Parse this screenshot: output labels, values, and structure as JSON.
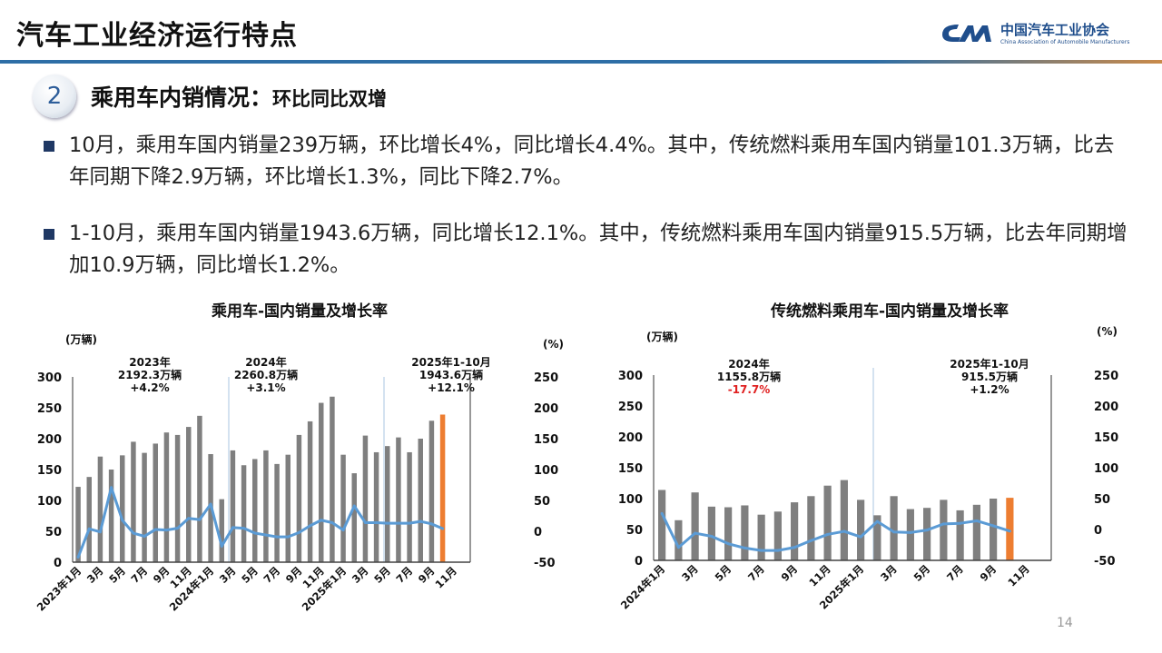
{
  "header": {
    "title": "汽车工业经济运行特点",
    "logo_cn": "中国汽车工业协会",
    "logo_en": "China Association of Automobile Manufacturers",
    "logo_mark": "CAAM"
  },
  "section": {
    "number": "2",
    "title": "乘用车内销情况：",
    "subtitle": "环比同比双增"
  },
  "bullets": [
    "10月，乘用车国内销量239万辆，环比增长4%，同比增长4.4%。其中，传统燃料乘用车国内销量101.3万辆，比去年同期下降2.9万辆，环比增长1.3%，同比下降2.7%。",
    "1-10月，乘用车国内销量1943.6万辆，同比增长12.1%。其中，传统燃料乘用车国内销量915.5万辆，比去年同期增加10.9万辆，同比增长1.2%。"
  ],
  "page_number": "14",
  "colors": {
    "bar": "#7f7f7f",
    "highlight": "#ed7d31",
    "line": "#5b9bd5",
    "negative": "#e02020",
    "accent": "#1f3864"
  },
  "chart_data": [
    {
      "type": "bar+line",
      "title": "乘用车-国内销量及增长率",
      "ylabel": "(万辆)",
      "y2label": "(%)",
      "ylim": [
        0,
        300
      ],
      "yticks": [
        "0",
        "50",
        "100",
        "150",
        "200",
        "250",
        "300"
      ],
      "y2lim": [
        -50,
        250
      ],
      "y2ticks": [
        "-50",
        "0",
        "50",
        "100",
        "150",
        "200",
        "250"
      ],
      "num_categories": 36,
      "x_tick_labels": [
        "2023年1月",
        "3月",
        "5月",
        "7月",
        "9月",
        "11月",
        "2024年1月",
        "3月",
        "5月",
        "7月",
        "9月",
        "11月",
        "2025年1月",
        "3月",
        "5月",
        "7月",
        "9月",
        "11月"
      ],
      "sales": [
        122,
        138,
        171,
        150,
        173,
        195,
        177,
        192,
        210,
        206,
        219,
        237,
        175,
        102,
        181,
        157,
        167,
        181,
        159,
        174,
        206,
        228,
        258,
        268,
        174,
        144,
        205,
        178,
        188,
        202,
        178,
        200,
        229,
        239
      ],
      "growth": [
        -42,
        4,
        -1,
        71,
        18,
        -3,
        -8,
        3,
        2,
        5,
        21,
        19,
        44,
        -24,
        6,
        5,
        -3,
        -6,
        -9,
        -9,
        -2,
        9,
        18,
        14,
        2,
        41,
        14,
        14,
        13,
        13,
        13,
        16,
        12,
        4.4
      ],
      "highlight_index": 33,
      "annotations": [
        {
          "lines": [
            "2023年",
            "2192.3万辆",
            "+4.2%"
          ],
          "negative": false
        },
        {
          "lines": [
            "2024年",
            "2260.8万辆",
            "+3.1%"
          ],
          "negative": false
        },
        {
          "lines": [
            "2025年1-10月",
            "1943.6万辆",
            "+12.1%"
          ],
          "negative": false
        }
      ]
    },
    {
      "type": "bar+line",
      "title": "传统燃料乘用车-国内销量及增长率",
      "ylabel": "(万辆)",
      "y2label": "(%)",
      "ylim": [
        0,
        300
      ],
      "yticks": [
        "0",
        "50",
        "100",
        "150",
        "200",
        "250",
        "300"
      ],
      "y2lim": [
        -50,
        250
      ],
      "y2ticks": [
        "-50",
        "0",
        "50",
        "100",
        "150",
        "200",
        "250"
      ],
      "num_categories": 24,
      "x_tick_labels": [
        "2024年1月",
        "3月",
        "5月",
        "7月",
        "9月",
        "11月",
        "2025年1月",
        "3月",
        "5月",
        "7月",
        "9月",
        "11月"
      ],
      "sales": [
        114,
        65,
        110,
        87,
        86,
        89,
        74,
        79,
        94,
        104,
        121,
        130,
        98,
        73,
        104,
        83,
        85,
        98,
        81,
        90,
        100,
        101.3
      ],
      "growth": [
        26,
        -29,
        -6,
        -11,
        -23,
        -30,
        -34,
        -34,
        -29,
        -18,
        -8,
        -3,
        -12,
        13,
        -4,
        -5,
        -1,
        9,
        10,
        14,
        6,
        -2.7
      ],
      "highlight_index": 21,
      "annotations": [
        {
          "lines": [
            "2024年",
            "1155.8万辆",
            "-17.7%"
          ],
          "negative": true
        },
        {
          "lines": [
            "2025年1-10月",
            "915.5万辆",
            "+1.2%"
          ],
          "negative": false
        }
      ]
    }
  ]
}
